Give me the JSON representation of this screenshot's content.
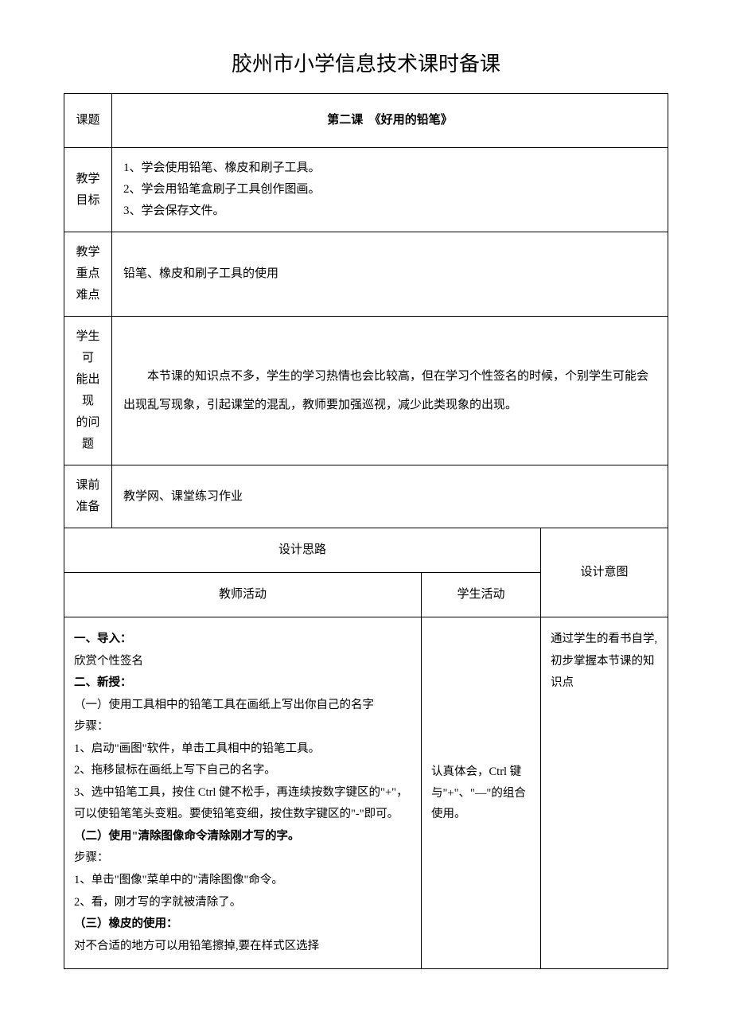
{
  "title": "胶州市小学信息技术课时备课",
  "rows": {
    "topic": {
      "label": "课题",
      "value": "第二课　《好用的铅笔》"
    },
    "objectives": {
      "label_lines": [
        "教学",
        "目标"
      ],
      "items": [
        "1、学会使用铅笔、橡皮和刷子工具。",
        "2、学会用铅笔盒刷子工具创作图画。",
        "3、学会保存文件。"
      ]
    },
    "keypoints": {
      "label_lines": [
        "教学",
        "重点",
        "难点"
      ],
      "value": "铅笔、橡皮和刷子工具的使用"
    },
    "problems": {
      "label_lines": [
        "学生",
        "可",
        "能出",
        "现",
        "的问",
        "题"
      ],
      "value": "　　本节课的知识点不多，学生的学习热情也会比较高，但在学习个性签名的时候，个别学生可能会出现乱写现象，引起课堂的混乱，教师要加强巡视，减少此类现象的出现。"
    },
    "preparation": {
      "label_lines": [
        "课前",
        "准备"
      ],
      "value": "教学网、课堂练习作业"
    }
  },
  "design": {
    "header_design": "设计思路",
    "header_teacher": "教师活动",
    "header_student": "学生活动",
    "header_intent": "设计意图",
    "teacher_activity": {
      "s1_title": "一、导入：",
      "s1_line1": "欣赏个性签名",
      "s2_title": "二、新授：",
      "s2_p1_title": "（一）使用工具相中的铅笔工具在画纸上写出你自己的名字",
      "s2_steps_label": "步骤：",
      "s2_step1": "1、启动\"画图\"软件，单击工具相中的铅笔工具。",
      "s2_step2": "2、拖移鼠标在画纸上写下自己的名字。",
      "s2_step3": "3、选中铅笔工具，按住 Ctrl 健不松手，再连续按数字键区的\"+\"，可以使铅笔笔头变粗。要使铅笔变细，按住数字键区的\"-\"即可。",
      "s2_p2_title": "（二）使用\"清除图像命令清除刚才写的字。",
      "s2_p2_steps_label": "步骤：",
      "s2_p2_step1": "1、单击\"图像\"菜单中的\"清除图像\"命令。",
      "s2_p2_step2": "2、看，刚才写的字就被清除了。",
      "s2_p3_title": "（三）橡皮的使用：",
      "s2_p3_line1": "对不合适的地方可以用铅笔擦掉,要在样式区选择"
    },
    "student_activity": "认真体会，Ctrl 键与\"+\"、\"—\"的组合使用。",
    "design_intent": "通过学生的看书自学,初步掌握本节课的知识点"
  },
  "style": {
    "background_color": "#ffffff",
    "text_color": "#000000",
    "border_color": "#000000",
    "title_fontsize": 26,
    "body_fontsize": 15,
    "font_family": "SimSun"
  }
}
